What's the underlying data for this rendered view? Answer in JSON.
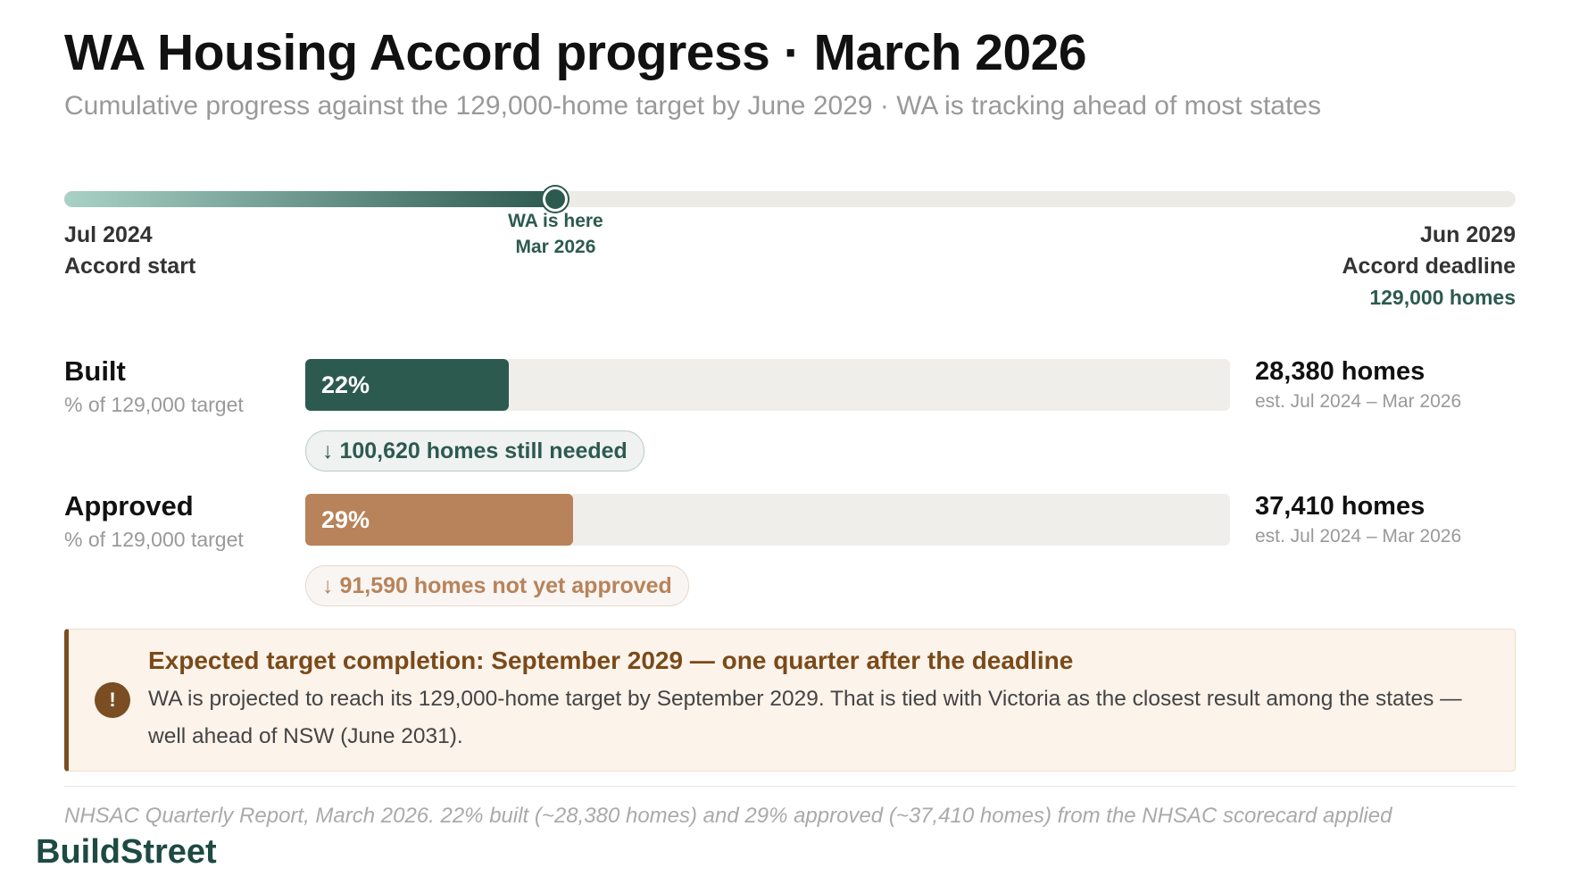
{
  "header": {
    "title": "WA Housing Accord progress · March 2026",
    "subtitle": "Cumulative progress against the 129,000-home target by June 2029 · WA is tracking ahead of most states"
  },
  "timeline": {
    "start_date": "Jul 2024",
    "start_label": "Accord start",
    "marker_label": "WA is here",
    "marker_date": "Mar 2026",
    "end_date": "Jun 2029",
    "end_label": "Accord deadline",
    "end_target": "129,000 homes"
  },
  "metrics": {
    "xlim": [
      0,
      100
    ],
    "items": [
      {
        "name": "Built",
        "sublabel": "% of 129,000 target",
        "value": 22,
        "value_label": "22%",
        "color": "#2d5a4f",
        "homes": "28,380 homes",
        "period": "est. Jul 2024 – Mar 2026",
        "gap": "↓ 100,620 homes still needed"
      },
      {
        "name": "Approved",
        "sublabel": "% of 129,000 target",
        "value": 29,
        "value_label": "29%",
        "color": "#b8835a",
        "homes": "37,410 homes",
        "period": "est. Jul 2024 – Mar 2026",
        "gap": "↓ 91,590 homes not yet approved"
      }
    ]
  },
  "callout": {
    "title": "Expected target completion: September 2029 — one quarter after the deadline",
    "body": "WA is projected to reach its 129,000-home target by September 2029. That is tied with Victoria as the closest result among the states — well ahead of NSW (June 2031)."
  },
  "footer": {
    "source": "NHSAC Quarterly Report, March 2026. 22% built (~28,380 homes) and 29% approved (~37,410 homes) from the NHSAC scorecard applied",
    "brand": "BuildStreet"
  }
}
